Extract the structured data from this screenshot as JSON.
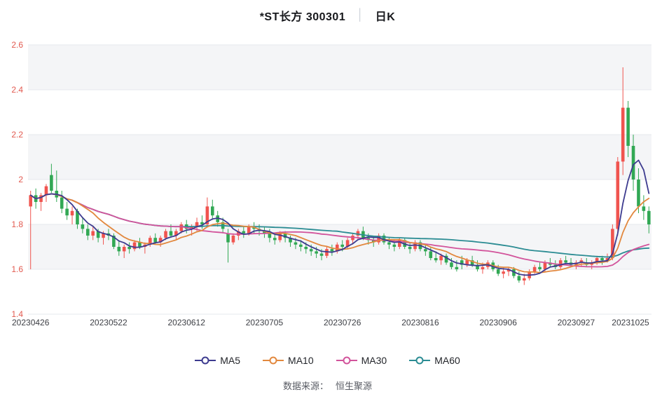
{
  "header": {
    "title_text": "*ST长方 300301",
    "divider": "│",
    "kline_label": "日K"
  },
  "footer": {
    "label": "数据来源：",
    "value": "恒生聚源"
  },
  "chart_data": {
    "type": "candlestick",
    "title": "*ST长方 300301 日K",
    "ylim": [
      1.4,
      2.6
    ],
    "y_tick_values": [
      2.6,
      2.4,
      2.2,
      2.0,
      1.8,
      1.6,
      1.4
    ],
    "y_tick_labels": [
      "2.6",
      "2.4",
      "2.2",
      "2",
      "1.8",
      "1.6",
      "1.4"
    ],
    "x_ticks": [
      {
        "index": 0,
        "label": "20230426"
      },
      {
        "index": 15,
        "label": "20230522"
      },
      {
        "index": 30,
        "label": "20230612"
      },
      {
        "index": 45,
        "label": "20230705"
      },
      {
        "index": 60,
        "label": "20230726"
      },
      {
        "index": 75,
        "label": "20230816"
      },
      {
        "index": 90,
        "label": "20230906"
      },
      {
        "index": 105,
        "label": "20230927"
      },
      {
        "index": 119,
        "label": "20231025"
      }
    ],
    "grid": true,
    "legend_position": "bottom",
    "colors": {
      "up": "#f0544f",
      "down": "#31a854",
      "axis_label_y": "#e25a50",
      "axis_label_x": "#3d3f45",
      "grid_line": "#e6e8ec",
      "band_fill": "#f4f5f7"
    },
    "ma_series": [
      {
        "name": "MA5",
        "window": 5,
        "color": "#3d3b8f"
      },
      {
        "name": "MA10",
        "window": 10,
        "color": "#e2883e"
      },
      {
        "name": "MA30",
        "window": 30,
        "color": "#d2539b"
      },
      {
        "name": "MA60",
        "window": 60,
        "color": "#2b8c93"
      }
    ],
    "candles": [
      {
        "d": "20230426",
        "o": 1.88,
        "h": 1.95,
        "l": 1.6,
        "c": 1.93
      },
      {
        "d": "20230427",
        "o": 1.93,
        "h": 1.96,
        "l": 1.87,
        "c": 1.9
      },
      {
        "d": "20230428",
        "o": 1.9,
        "h": 1.94,
        "l": 1.86,
        "c": 1.93
      },
      {
        "d": "20230504",
        "o": 1.93,
        "h": 1.98,
        "l": 1.9,
        "c": 1.97
      },
      {
        "d": "20230505",
        "o": 2.02,
        "h": 2.07,
        "l": 1.94,
        "c": 1.95
      },
      {
        "d": "20230508",
        "o": 1.95,
        "h": 2.04,
        "l": 1.9,
        "c": 1.92
      },
      {
        "d": "20230509",
        "o": 1.92,
        "h": 1.95,
        "l": 1.85,
        "c": 1.87
      },
      {
        "d": "20230510",
        "o": 1.87,
        "h": 1.9,
        "l": 1.82,
        "c": 1.84
      },
      {
        "d": "20230511",
        "o": 1.84,
        "h": 1.88,
        "l": 1.8,
        "c": 1.86
      },
      {
        "d": "20230512",
        "o": 1.86,
        "h": 1.87,
        "l": 1.78,
        "c": 1.8
      },
      {
        "d": "20230515",
        "o": 1.8,
        "h": 1.83,
        "l": 1.76,
        "c": 1.78
      },
      {
        "d": "20230516",
        "o": 1.78,
        "h": 1.8,
        "l": 1.73,
        "c": 1.75
      },
      {
        "d": "20230517",
        "o": 1.75,
        "h": 1.79,
        "l": 1.73,
        "c": 1.77
      },
      {
        "d": "20230518",
        "o": 1.77,
        "h": 1.78,
        "l": 1.72,
        "c": 1.74
      },
      {
        "d": "20230519",
        "o": 1.74,
        "h": 1.77,
        "l": 1.71,
        "c": 1.76
      },
      {
        "d": "20230522",
        "o": 1.76,
        "h": 1.78,
        "l": 1.73,
        "c": 1.75
      },
      {
        "d": "20230523",
        "o": 1.75,
        "h": 1.76,
        "l": 1.69,
        "c": 1.7
      },
      {
        "d": "20230524",
        "o": 1.7,
        "h": 1.73,
        "l": 1.66,
        "c": 1.68
      },
      {
        "d": "20230525",
        "o": 1.68,
        "h": 1.71,
        "l": 1.65,
        "c": 1.7
      },
      {
        "d": "20230526",
        "o": 1.7,
        "h": 1.72,
        "l": 1.67,
        "c": 1.69
      },
      {
        "d": "20230529",
        "o": 1.69,
        "h": 1.73,
        "l": 1.68,
        "c": 1.72
      },
      {
        "d": "20230530",
        "o": 1.72,
        "h": 1.74,
        "l": 1.69,
        "c": 1.7
      },
      {
        "d": "20230531",
        "o": 1.7,
        "h": 1.72,
        "l": 1.67,
        "c": 1.71
      },
      {
        "d": "20230601",
        "o": 1.71,
        "h": 1.75,
        "l": 1.7,
        "c": 1.74
      },
      {
        "d": "20230602",
        "o": 1.74,
        "h": 1.76,
        "l": 1.71,
        "c": 1.72
      },
      {
        "d": "20230605",
        "o": 1.72,
        "h": 1.75,
        "l": 1.7,
        "c": 1.74
      },
      {
        "d": "20230606",
        "o": 1.74,
        "h": 1.78,
        "l": 1.73,
        "c": 1.77
      },
      {
        "d": "20230607",
        "o": 1.77,
        "h": 1.8,
        "l": 1.74,
        "c": 1.75
      },
      {
        "d": "20230608",
        "o": 1.75,
        "h": 1.78,
        "l": 1.73,
        "c": 1.77
      },
      {
        "d": "20230609",
        "o": 1.77,
        "h": 1.81,
        "l": 1.76,
        "c": 1.8
      },
      {
        "d": "20230612",
        "o": 1.8,
        "h": 1.82,
        "l": 1.76,
        "c": 1.78
      },
      {
        "d": "20230613",
        "o": 1.78,
        "h": 1.8,
        "l": 1.75,
        "c": 1.79
      },
      {
        "d": "20230614",
        "o": 1.79,
        "h": 1.83,
        "l": 1.77,
        "c": 1.81
      },
      {
        "d": "20230615",
        "o": 1.81,
        "h": 1.84,
        "l": 1.78,
        "c": 1.8
      },
      {
        "d": "20230616",
        "o": 1.8,
        "h": 1.92,
        "l": 1.79,
        "c": 1.88
      },
      {
        "d": "20230619",
        "o": 1.88,
        "h": 1.91,
        "l": 1.82,
        "c": 1.84
      },
      {
        "d": "20230620",
        "o": 1.84,
        "h": 1.86,
        "l": 1.79,
        "c": 1.81
      },
      {
        "d": "20230621",
        "o": 1.81,
        "h": 1.83,
        "l": 1.76,
        "c": 1.78
      },
      {
        "d": "20230626",
        "o": 1.76,
        "h": 1.78,
        "l": 1.63,
        "c": 1.72
      },
      {
        "d": "20230627",
        "o": 1.72,
        "h": 1.76,
        "l": 1.71,
        "c": 1.75
      },
      {
        "d": "20230628",
        "o": 1.75,
        "h": 1.78,
        "l": 1.73,
        "c": 1.77
      },
      {
        "d": "20230629",
        "o": 1.77,
        "h": 1.79,
        "l": 1.74,
        "c": 1.76
      },
      {
        "d": "20230630",
        "o": 1.76,
        "h": 1.8,
        "l": 1.75,
        "c": 1.79
      },
      {
        "d": "20230703",
        "o": 1.79,
        "h": 1.81,
        "l": 1.76,
        "c": 1.78
      },
      {
        "d": "20230704",
        "o": 1.78,
        "h": 1.8,
        "l": 1.75,
        "c": 1.77
      },
      {
        "d": "20230705",
        "o": 1.77,
        "h": 1.79,
        "l": 1.74,
        "c": 1.76
      },
      {
        "d": "20230706",
        "o": 1.76,
        "h": 1.78,
        "l": 1.72,
        "c": 1.74
      },
      {
        "d": "20230707",
        "o": 1.74,
        "h": 1.76,
        "l": 1.71,
        "c": 1.73
      },
      {
        "d": "20230710",
        "o": 1.73,
        "h": 1.77,
        "l": 1.72,
        "c": 1.76
      },
      {
        "d": "20230711",
        "o": 1.76,
        "h": 1.77,
        "l": 1.72,
        "c": 1.74
      },
      {
        "d": "20230712",
        "o": 1.74,
        "h": 1.75,
        "l": 1.7,
        "c": 1.72
      },
      {
        "d": "20230713",
        "o": 1.72,
        "h": 1.74,
        "l": 1.69,
        "c": 1.71
      },
      {
        "d": "20230714",
        "o": 1.71,
        "h": 1.73,
        "l": 1.68,
        "c": 1.7
      },
      {
        "d": "20230717",
        "o": 1.7,
        "h": 1.72,
        "l": 1.67,
        "c": 1.69
      },
      {
        "d": "20230718",
        "o": 1.69,
        "h": 1.71,
        "l": 1.66,
        "c": 1.68
      },
      {
        "d": "20230719",
        "o": 1.68,
        "h": 1.7,
        "l": 1.65,
        "c": 1.67
      },
      {
        "d": "20230720",
        "o": 1.67,
        "h": 1.69,
        "l": 1.64,
        "c": 1.66
      },
      {
        "d": "20230721",
        "o": 1.66,
        "h": 1.7,
        "l": 1.65,
        "c": 1.69
      },
      {
        "d": "20230724",
        "o": 1.69,
        "h": 1.71,
        "l": 1.66,
        "c": 1.68
      },
      {
        "d": "20230725",
        "o": 1.68,
        "h": 1.72,
        "l": 1.67,
        "c": 1.71
      },
      {
        "d": "20230726",
        "o": 1.71,
        "h": 1.73,
        "l": 1.68,
        "c": 1.7
      },
      {
        "d": "20230727",
        "o": 1.7,
        "h": 1.74,
        "l": 1.69,
        "c": 1.73
      },
      {
        "d": "20230728",
        "o": 1.73,
        "h": 1.76,
        "l": 1.71,
        "c": 1.75
      },
      {
        "d": "20230731",
        "o": 1.75,
        "h": 1.78,
        "l": 1.73,
        "c": 1.77
      },
      {
        "d": "20230801",
        "o": 1.77,
        "h": 1.79,
        "l": 1.73,
        "c": 1.74
      },
      {
        "d": "20230802",
        "o": 1.74,
        "h": 1.76,
        "l": 1.71,
        "c": 1.73
      },
      {
        "d": "20230803",
        "o": 1.73,
        "h": 1.75,
        "l": 1.7,
        "c": 1.72
      },
      {
        "d": "20230804",
        "o": 1.72,
        "h": 1.76,
        "l": 1.71,
        "c": 1.75
      },
      {
        "d": "20230807",
        "o": 1.75,
        "h": 1.76,
        "l": 1.71,
        "c": 1.72
      },
      {
        "d": "20230808",
        "o": 1.72,
        "h": 1.74,
        "l": 1.69,
        "c": 1.71
      },
      {
        "d": "20230809",
        "o": 1.71,
        "h": 1.73,
        "l": 1.68,
        "c": 1.7
      },
      {
        "d": "20230810",
        "o": 1.7,
        "h": 1.74,
        "l": 1.69,
        "c": 1.73
      },
      {
        "d": "20230811",
        "o": 1.73,
        "h": 1.74,
        "l": 1.69,
        "c": 1.7
      },
      {
        "d": "20230814",
        "o": 1.7,
        "h": 1.72,
        "l": 1.67,
        "c": 1.69
      },
      {
        "d": "20230815",
        "o": 1.69,
        "h": 1.73,
        "l": 1.68,
        "c": 1.72
      },
      {
        "d": "20230816",
        "o": 1.72,
        "h": 1.73,
        "l": 1.68,
        "c": 1.69
      },
      {
        "d": "20230817",
        "o": 1.69,
        "h": 1.71,
        "l": 1.66,
        "c": 1.68
      },
      {
        "d": "20230818",
        "o": 1.68,
        "h": 1.7,
        "l": 1.64,
        "c": 1.65
      },
      {
        "d": "20230821",
        "o": 1.65,
        "h": 1.68,
        "l": 1.63,
        "c": 1.64
      },
      {
        "d": "20230822",
        "o": 1.64,
        "h": 1.67,
        "l": 1.62,
        "c": 1.66
      },
      {
        "d": "20230823",
        "o": 1.66,
        "h": 1.67,
        "l": 1.62,
        "c": 1.63
      },
      {
        "d": "20230824",
        "o": 1.63,
        "h": 1.65,
        "l": 1.6,
        "c": 1.61
      },
      {
        "d": "20230825",
        "o": 1.61,
        "h": 1.64,
        "l": 1.59,
        "c": 1.6
      },
      {
        "d": "20230828",
        "o": 1.64,
        "h": 1.66,
        "l": 1.6,
        "c": 1.62
      },
      {
        "d": "20230829",
        "o": 1.62,
        "h": 1.65,
        "l": 1.61,
        "c": 1.64
      },
      {
        "d": "20230830",
        "o": 1.64,
        "h": 1.66,
        "l": 1.61,
        "c": 1.62
      },
      {
        "d": "20230831",
        "o": 1.62,
        "h": 1.64,
        "l": 1.59,
        "c": 1.6
      },
      {
        "d": "20230901",
        "o": 1.6,
        "h": 1.63,
        "l": 1.58,
        "c": 1.61
      },
      {
        "d": "20230904",
        "o": 1.61,
        "h": 1.64,
        "l": 1.6,
        "c": 1.63
      },
      {
        "d": "20230905",
        "o": 1.63,
        "h": 1.64,
        "l": 1.59,
        "c": 1.6
      },
      {
        "d": "20230906",
        "o": 1.6,
        "h": 1.62,
        "l": 1.57,
        "c": 1.58
      },
      {
        "d": "20230907",
        "o": 1.58,
        "h": 1.61,
        "l": 1.56,
        "c": 1.59
      },
      {
        "d": "20230908",
        "o": 1.59,
        "h": 1.61,
        "l": 1.57,
        "c": 1.6
      },
      {
        "d": "20230911",
        "o": 1.6,
        "h": 1.61,
        "l": 1.56,
        "c": 1.57
      },
      {
        "d": "20230912",
        "o": 1.57,
        "h": 1.59,
        "l": 1.54,
        "c": 1.55
      },
      {
        "d": "20230913",
        "o": 1.55,
        "h": 1.58,
        "l": 1.53,
        "c": 1.56
      },
      {
        "d": "20230914",
        "o": 1.56,
        "h": 1.6,
        "l": 1.55,
        "c": 1.59
      },
      {
        "d": "20230915",
        "o": 1.59,
        "h": 1.62,
        "l": 1.58,
        "c": 1.61
      },
      {
        "d": "20230918",
        "o": 1.61,
        "h": 1.63,
        "l": 1.59,
        "c": 1.6
      },
      {
        "d": "20230919",
        "o": 1.6,
        "h": 1.64,
        "l": 1.59,
        "c": 1.63
      },
      {
        "d": "20230920",
        "o": 1.63,
        "h": 1.65,
        "l": 1.61,
        "c": 1.62
      },
      {
        "d": "20230921",
        "o": 1.62,
        "h": 1.64,
        "l": 1.6,
        "c": 1.61
      },
      {
        "d": "20230922",
        "o": 1.61,
        "h": 1.65,
        "l": 1.6,
        "c": 1.64
      },
      {
        "d": "20230925",
        "o": 1.64,
        "h": 1.66,
        "l": 1.62,
        "c": 1.63
      },
      {
        "d": "20230926",
        "o": 1.63,
        "h": 1.65,
        "l": 1.61,
        "c": 1.62
      },
      {
        "d": "20230927",
        "o": 1.62,
        "h": 1.64,
        "l": 1.6,
        "c": 1.63
      },
      {
        "d": "20230928",
        "o": 1.63,
        "h": 1.65,
        "l": 1.61,
        "c": 1.64
      },
      {
        "d": "20231009",
        "o": 1.63,
        "h": 1.65,
        "l": 1.61,
        "c": 1.62
      },
      {
        "d": "20231010",
        "o": 1.62,
        "h": 1.64,
        "l": 1.6,
        "c": 1.63
      },
      {
        "d": "20231011",
        "o": 1.63,
        "h": 1.66,
        "l": 1.62,
        "c": 1.65
      },
      {
        "d": "20231012",
        "o": 1.65,
        "h": 1.66,
        "l": 1.62,
        "c": 1.64
      },
      {
        "d": "20231013",
        "o": 1.64,
        "h": 1.67,
        "l": 1.63,
        "c": 1.65
      },
      {
        "d": "20231016",
        "o": 1.65,
        "h": 1.8,
        "l": 1.64,
        "c": 1.78
      },
      {
        "d": "20231017",
        "o": 1.78,
        "h": 2.1,
        "l": 1.75,
        "c": 2.08
      },
      {
        "d": "20231018",
        "o": 2.08,
        "h": 2.5,
        "l": 2.02,
        "c": 2.32
      },
      {
        "d": "20231019",
        "o": 2.32,
        "h": 2.35,
        "l": 2.1,
        "c": 2.15
      },
      {
        "d": "20231020",
        "o": 2.15,
        "h": 2.2,
        "l": 1.95,
        "c": 2.0
      },
      {
        "d": "20231023",
        "o": 2.0,
        "h": 2.05,
        "l": 1.85,
        "c": 1.88
      },
      {
        "d": "20231024",
        "o": 1.88,
        "h": 1.93,
        "l": 1.82,
        "c": 1.86
      },
      {
        "d": "20231025",
        "o": 1.86,
        "h": 1.88,
        "l": 1.76,
        "c": 1.8
      }
    ]
  }
}
